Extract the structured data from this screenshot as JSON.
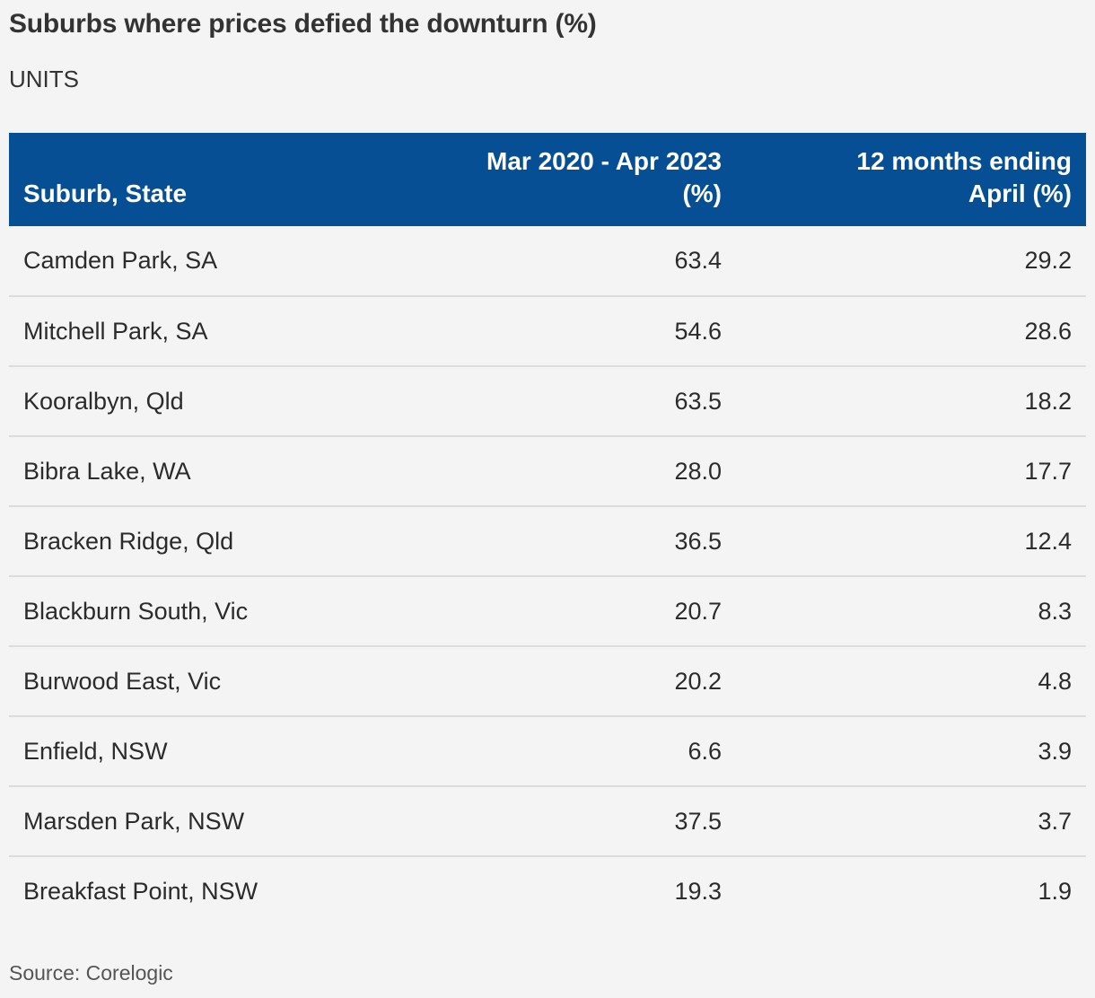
{
  "chart_data": {
    "type": "table",
    "title": "Suburbs where prices defied the downturn (%)",
    "subtitle": "UNITS",
    "columns": [
      "Suburb, State",
      "Mar 2020 - Apr 2023 (%)",
      "12 months ending April (%)"
    ],
    "rows": [
      [
        "Camden Park, SA",
        "63.4",
        "29.2"
      ],
      [
        "Mitchell Park, SA",
        "54.6",
        "28.6"
      ],
      [
        "Kooralbyn, Qld",
        "63.5",
        "18.2"
      ],
      [
        "Bibra Lake, WA",
        "28.0",
        "17.7"
      ],
      [
        "Bracken Ridge, Qld",
        "36.5",
        "12.4"
      ],
      [
        "Blackburn South, Vic",
        "20.7",
        "8.3"
      ],
      [
        "Burwood East, Vic",
        "20.2",
        "4.8"
      ],
      [
        "Enfield, NSW",
        "6.6",
        "3.9"
      ],
      [
        "Marsden Park, NSW",
        "37.5",
        "3.7"
      ],
      [
        "Breakfast Point, NSW",
        "19.3",
        "1.9"
      ]
    ],
    "source": "Source: Corelogic",
    "colors": {
      "header_bg": "#064f95",
      "header_text": "#ffffff",
      "background": "#f4f4f4"
    }
  }
}
